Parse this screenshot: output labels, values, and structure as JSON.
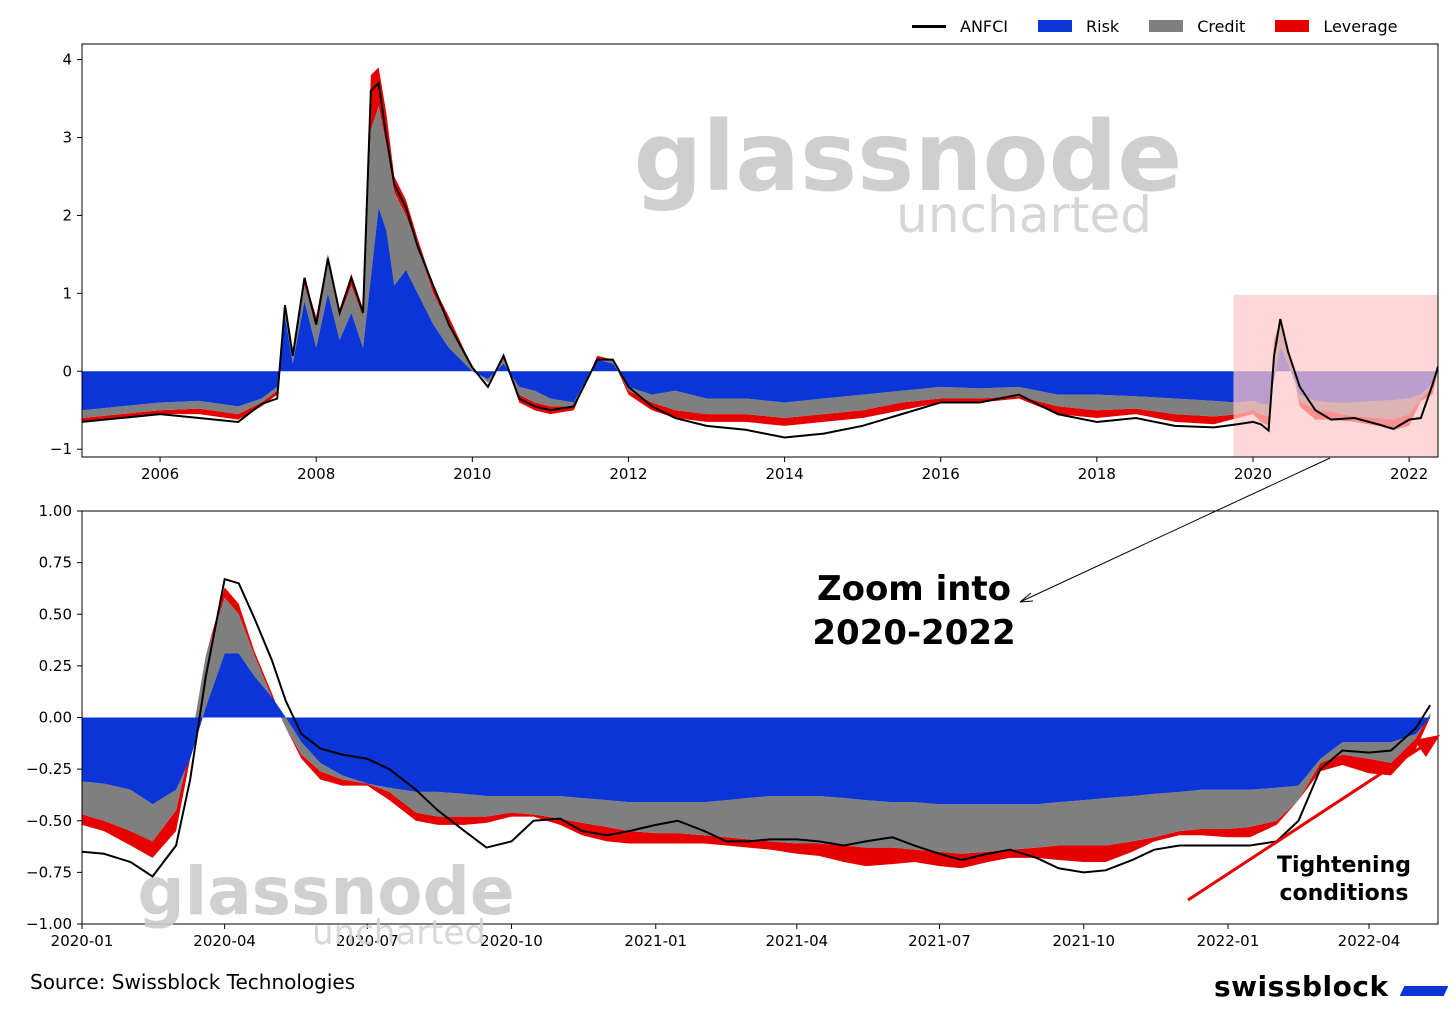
{
  "legend": [
    {
      "label": "ANFCI",
      "kind": "line",
      "color": "#000000"
    },
    {
      "label": "Risk",
      "kind": "patch",
      "color": "#0b35d6"
    },
    {
      "label": "Credit",
      "kind": "patch",
      "color": "#7f7f7f"
    },
    {
      "label": "Leverage",
      "kind": "patch",
      "color": "#e60000"
    }
  ],
  "watermark": {
    "line1": "glassnode",
    "line2": "uncharted"
  },
  "annotations": {
    "zoom_line1": "Zoom into",
    "zoom_line2": "2020-2022",
    "tight_line1": "Tightening",
    "tight_line2": "conditions"
  },
  "footer": {
    "source": "Source: Swissblock Technologies",
    "brand": "swissblock"
  },
  "colors": {
    "risk": "#0b35d6",
    "credit": "#7f7f7f",
    "leverage": "#e60000",
    "anfci": "#000000",
    "highlight": "#ffc7c7",
    "arrow": "#e60000"
  },
  "chart_data": [
    {
      "type": "area",
      "x_unit": "year",
      "xlim": [
        2005.0,
        2022.37
      ],
      "ylim": [
        -1.1,
        4.2
      ],
      "yticks": [
        -1,
        0,
        1,
        2,
        3,
        4
      ],
      "ytick_labels": [
        "−1",
        "0",
        "1",
        "2",
        "3",
        "4"
      ],
      "xticks": [
        2006,
        2008,
        2010,
        2012,
        2014,
        2016,
        2018,
        2020,
        2022
      ],
      "xtick_labels": [
        "2006",
        "2008",
        "2010",
        "2012",
        "2014",
        "2016",
        "2018",
        "2020",
        "2022"
      ],
      "highlight": {
        "x": [
          2019.75,
          2022.37
        ],
        "y": [
          -1.1,
          0.98
        ]
      },
      "x": [
        2005.0,
        2005.5,
        2006.0,
        2006.5,
        2007.0,
        2007.3,
        2007.5,
        2007.6,
        2007.7,
        2007.85,
        2008.0,
        2008.15,
        2008.3,
        2008.45,
        2008.6,
        2008.7,
        2008.8,
        2008.9,
        2009.0,
        2009.15,
        2009.3,
        2009.5,
        2009.7,
        2010.0,
        2010.2,
        2010.4,
        2010.6,
        2010.8,
        2011.0,
        2011.3,
        2011.6,
        2011.8,
        2012.0,
        2012.3,
        2012.6,
        2013.0,
        2013.5,
        2014.0,
        2014.5,
        2015.0,
        2015.5,
        2016.0,
        2016.5,
        2017.0,
        2017.5,
        2018.0,
        2018.5,
        2019.0,
        2019.5,
        2019.8,
        2020.0,
        2020.1,
        2020.2,
        2020.27,
        2020.35,
        2020.45,
        2020.6,
        2020.8,
        2021.0,
        2021.3,
        2021.6,
        2021.8,
        2022.0,
        2022.15,
        2022.3,
        2022.37
      ],
      "series": [
        {
          "name": "Risk",
          "values": [
            -0.5,
            -0.45,
            -0.4,
            -0.38,
            -0.45,
            -0.35,
            -0.2,
            0.7,
            0.1,
            0.9,
            0.3,
            1.0,
            0.4,
            0.75,
            0.3,
            1.2,
            2.1,
            1.8,
            1.1,
            1.3,
            1.0,
            0.6,
            0.3,
            0.0,
            -0.1,
            0.1,
            -0.2,
            -0.25,
            -0.35,
            -0.4,
            0.15,
            0.1,
            -0.2,
            -0.3,
            -0.25,
            -0.35,
            -0.35,
            -0.4,
            -0.35,
            -0.3,
            -0.25,
            -0.2,
            -0.22,
            -0.2,
            -0.3,
            -0.3,
            -0.32,
            -0.35,
            -0.38,
            -0.4,
            -0.38,
            -0.42,
            -0.43,
            -0.1,
            0.31,
            0.1,
            -0.3,
            -0.38,
            -0.4,
            -0.4,
            -0.38,
            -0.37,
            -0.35,
            -0.3,
            -0.15,
            -0.02
          ]
        },
        {
          "name": "Credit",
          "values": [
            -0.6,
            -0.55,
            -0.5,
            -0.48,
            -0.55,
            -0.4,
            -0.25,
            0.75,
            0.2,
            1.1,
            0.6,
            1.4,
            0.7,
            1.1,
            0.7,
            3.1,
            3.4,
            2.9,
            2.3,
            2.0,
            1.6,
            1.0,
            0.6,
            0.05,
            -0.15,
            0.15,
            -0.3,
            -0.4,
            -0.45,
            -0.45,
            0.15,
            0.15,
            -0.25,
            -0.4,
            -0.5,
            -0.55,
            -0.55,
            -0.6,
            -0.55,
            -0.5,
            -0.4,
            -0.35,
            -0.35,
            -0.32,
            -0.45,
            -0.5,
            -0.48,
            -0.55,
            -0.58,
            -0.55,
            -0.5,
            -0.55,
            -0.58,
            0.3,
            0.6,
            0.2,
            -0.38,
            -0.5,
            -0.52,
            -0.58,
            -0.6,
            -0.62,
            -0.55,
            -0.35,
            -0.2,
            0.03
          ]
        },
        {
          "name": "Leverage",
          "values": [
            -0.65,
            -0.6,
            -0.55,
            -0.55,
            -0.62,
            -0.45,
            -0.3,
            0.8,
            0.25,
            1.2,
            0.7,
            1.5,
            0.8,
            1.25,
            0.8,
            3.8,
            3.9,
            3.3,
            2.5,
            2.2,
            1.7,
            1.1,
            0.7,
            0.05,
            -0.15,
            0.2,
            -0.4,
            -0.5,
            -0.55,
            -0.5,
            0.2,
            0.15,
            -0.3,
            -0.5,
            -0.6,
            -0.65,
            -0.65,
            -0.7,
            -0.65,
            -0.6,
            -0.5,
            -0.4,
            -0.4,
            -0.35,
            -0.55,
            -0.6,
            -0.55,
            -0.65,
            -0.68,
            -0.6,
            -0.55,
            -0.65,
            -0.7,
            0.4,
            0.65,
            0.3,
            -0.45,
            -0.62,
            -0.62,
            -0.65,
            -0.7,
            -0.75,
            -0.7,
            -0.38,
            -0.3,
            0.0
          ]
        },
        {
          "name": "ANFCI",
          "values": [
            -0.65,
            -0.6,
            -0.55,
            -0.6,
            -0.65,
            -0.42,
            -0.35,
            0.85,
            0.2,
            1.2,
            0.6,
            1.45,
            0.75,
            1.2,
            0.75,
            3.6,
            3.7,
            3.0,
            2.4,
            2.1,
            1.6,
            1.1,
            0.6,
            0.05,
            -0.2,
            0.2,
            -0.35,
            -0.45,
            -0.5,
            -0.45,
            0.15,
            0.15,
            -0.2,
            -0.45,
            -0.6,
            -0.7,
            -0.75,
            -0.85,
            -0.8,
            -0.7,
            -0.55,
            -0.4,
            -0.4,
            -0.3,
            -0.55,
            -0.65,
            -0.6,
            -0.7,
            -0.72,
            -0.68,
            -0.65,
            -0.68,
            -0.76,
            0.2,
            0.67,
            0.25,
            -0.2,
            -0.5,
            -0.62,
            -0.6,
            -0.68,
            -0.74,
            -0.62,
            -0.6,
            -0.17,
            0.06
          ]
        }
      ]
    },
    {
      "type": "area",
      "x_unit": "date",
      "xlim": [
        "2020-01-01",
        "2022-05-15"
      ],
      "ylim": [
        -1.0,
        1.0
      ],
      "yticks": [
        -1.0,
        -0.75,
        -0.5,
        -0.25,
        0.0,
        0.25,
        0.5,
        0.75,
        1.0
      ],
      "ytick_labels": [
        "−1.00",
        "−0.75",
        "−0.50",
        "−0.25",
        "0.00",
        "0.25",
        "0.50",
        "0.75",
        "1.00"
      ],
      "xticks": [
        "2020-01-01",
        "2020-04-01",
        "2020-07-01",
        "2020-10-01",
        "2021-01-01",
        "2021-04-01",
        "2021-07-01",
        "2021-10-01",
        "2022-01-01",
        "2022-04-01"
      ],
      "xtick_labels": [
        "2020-01",
        "2020-04",
        "2020-07",
        "2020-10",
        "2021-01",
        "2021-04",
        "2021-07",
        "2021-10",
        "2022-01",
        "2022-04"
      ],
      "x": [
        "2020-01-01",
        "2020-01-15",
        "2020-02-01",
        "2020-02-15",
        "2020-03-01",
        "2020-03-10",
        "2020-03-20",
        "2020-04-01",
        "2020-04-10",
        "2020-04-20",
        "2020-05-01",
        "2020-05-10",
        "2020-05-20",
        "2020-06-01",
        "2020-06-15",
        "2020-07-01",
        "2020-07-15",
        "2020-08-01",
        "2020-08-15",
        "2020-09-01",
        "2020-09-15",
        "2020-10-01",
        "2020-10-15",
        "2020-11-01",
        "2020-11-15",
        "2020-12-01",
        "2020-12-15",
        "2021-01-01",
        "2021-01-15",
        "2021-02-01",
        "2021-02-15",
        "2021-03-01",
        "2021-03-15",
        "2021-04-01",
        "2021-04-15",
        "2021-05-01",
        "2021-05-15",
        "2021-06-01",
        "2021-06-15",
        "2021-07-01",
        "2021-07-15",
        "2021-08-01",
        "2021-08-15",
        "2021-09-01",
        "2021-09-15",
        "2021-10-01",
        "2021-10-15",
        "2021-11-01",
        "2021-11-15",
        "2021-12-01",
        "2021-12-15",
        "2022-01-01",
        "2022-01-15",
        "2022-02-01",
        "2022-02-15",
        "2022-03-01",
        "2022-03-15",
        "2022-04-01",
        "2022-04-15",
        "2022-05-01",
        "2022-05-10"
      ],
      "series": [
        {
          "name": "Risk",
          "values": [
            -0.31,
            -0.32,
            -0.35,
            -0.42,
            -0.35,
            -0.2,
            0.05,
            0.31,
            0.31,
            0.2,
            0.1,
            0.0,
            -0.12,
            -0.22,
            -0.28,
            -0.32,
            -0.34,
            -0.36,
            -0.36,
            -0.37,
            -0.38,
            -0.38,
            -0.38,
            -0.38,
            -0.39,
            -0.4,
            -0.41,
            -0.41,
            -0.41,
            -0.41,
            -0.4,
            -0.39,
            -0.38,
            -0.38,
            -0.38,
            -0.39,
            -0.4,
            -0.41,
            -0.41,
            -0.42,
            -0.42,
            -0.42,
            -0.42,
            -0.42,
            -0.41,
            -0.4,
            -0.39,
            -0.38,
            -0.37,
            -0.36,
            -0.35,
            -0.35,
            -0.35,
            -0.34,
            -0.33,
            -0.2,
            -0.12,
            -0.12,
            -0.12,
            -0.08,
            0.0
          ]
        },
        {
          "name": "Credit",
          "values": [
            -0.47,
            -0.5,
            -0.55,
            -0.6,
            -0.45,
            -0.15,
            0.3,
            0.58,
            0.5,
            0.3,
            0.1,
            -0.05,
            -0.18,
            -0.26,
            -0.3,
            -0.32,
            -0.36,
            -0.46,
            -0.48,
            -0.48,
            -0.48,
            -0.46,
            -0.47,
            -0.49,
            -0.51,
            -0.53,
            -0.55,
            -0.56,
            -0.56,
            -0.57,
            -0.58,
            -0.59,
            -0.6,
            -0.61,
            -0.61,
            -0.62,
            -0.63,
            -0.63,
            -0.64,
            -0.65,
            -0.66,
            -0.65,
            -0.64,
            -0.63,
            -0.62,
            -0.62,
            -0.62,
            -0.6,
            -0.58,
            -0.55,
            -0.54,
            -0.54,
            -0.53,
            -0.5,
            -0.4,
            -0.22,
            -0.18,
            -0.2,
            -0.22,
            -0.1,
            0.02
          ]
        },
        {
          "name": "Leverage",
          "values": [
            -0.52,
            -0.55,
            -0.62,
            -0.68,
            -0.55,
            -0.2,
            0.3,
            0.63,
            0.55,
            0.32,
            0.12,
            -0.05,
            -0.2,
            -0.3,
            -0.33,
            -0.33,
            -0.4,
            -0.5,
            -0.52,
            -0.52,
            -0.51,
            -0.48,
            -0.48,
            -0.52,
            -0.57,
            -0.6,
            -0.61,
            -0.61,
            -0.61,
            -0.61,
            -0.62,
            -0.63,
            -0.64,
            -0.66,
            -0.67,
            -0.7,
            -0.72,
            -0.71,
            -0.7,
            -0.72,
            -0.73,
            -0.7,
            -0.68,
            -0.68,
            -0.69,
            -0.7,
            -0.7,
            -0.65,
            -0.6,
            -0.57,
            -0.57,
            -0.58,
            -0.58,
            -0.52,
            -0.4,
            -0.26,
            -0.23,
            -0.27,
            -0.28,
            -0.15,
            0.0
          ]
        },
        {
          "name": "ANFCI",
          "values": [
            -0.65,
            -0.66,
            -0.7,
            -0.77,
            -0.62,
            -0.3,
            0.2,
            0.67,
            0.65,
            0.48,
            0.28,
            0.08,
            -0.08,
            -0.15,
            -0.18,
            -0.2,
            -0.25,
            -0.35,
            -0.45,
            -0.55,
            -0.63,
            -0.6,
            -0.5,
            -0.49,
            -0.55,
            -0.57,
            -0.55,
            -0.52,
            -0.5,
            -0.55,
            -0.6,
            -0.6,
            -0.59,
            -0.59,
            -0.6,
            -0.62,
            -0.6,
            -0.58,
            -0.62,
            -0.66,
            -0.69,
            -0.66,
            -0.64,
            -0.68,
            -0.73,
            -0.75,
            -0.74,
            -0.69,
            -0.64,
            -0.62,
            -0.62,
            -0.62,
            -0.62,
            -0.6,
            -0.5,
            -0.25,
            -0.16,
            -0.17,
            -0.16,
            -0.05,
            0.06
          ]
        }
      ]
    }
  ]
}
